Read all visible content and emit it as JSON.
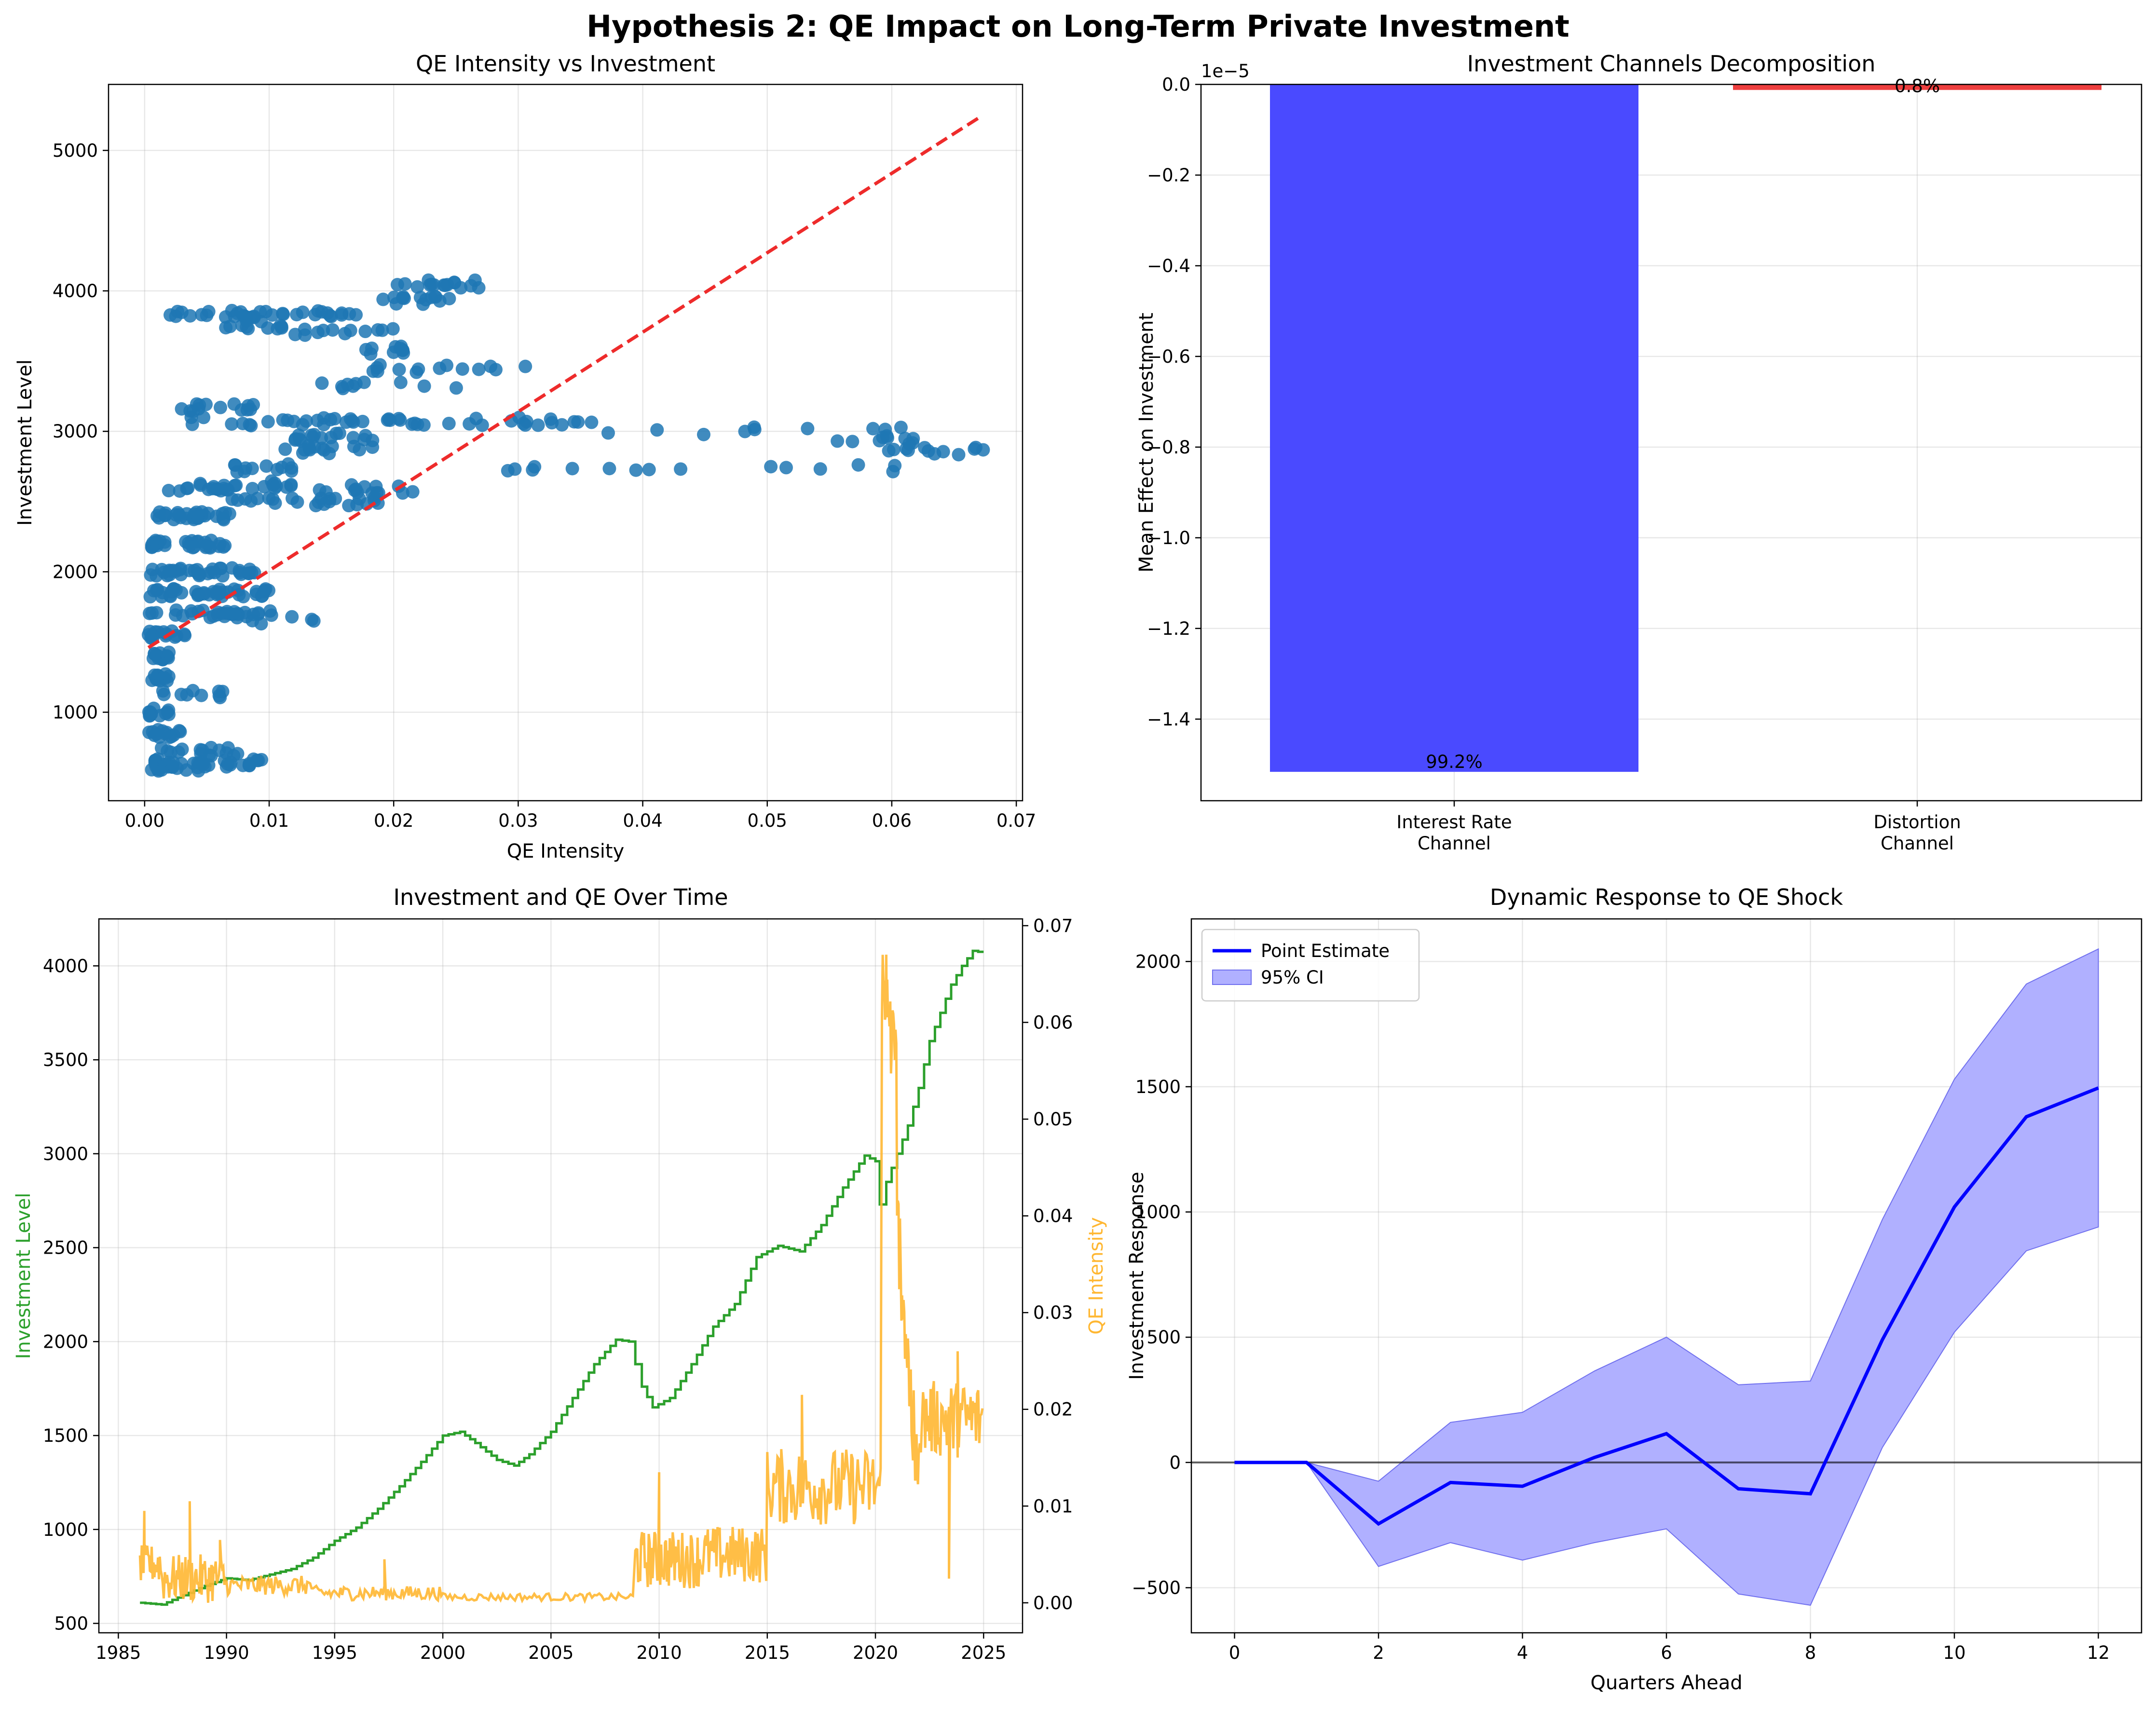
{
  "figure_title": "Hypothesis 2: QE Impact on Long-Term Private Investment",
  "chart_data": [
    {
      "id": "scatter",
      "type": "scatter",
      "title": "QE Intensity vs Investment",
      "xlabel": "QE Intensity",
      "ylabel": "Investment Level",
      "xlim": [
        -0.0029,
        0.0705
      ],
      "ylim": [
        370,
        5470
      ],
      "xticks": [
        0.0,
        0.01,
        0.02,
        0.03,
        0.04,
        0.05,
        0.06,
        0.07
      ],
      "xtick_labels": [
        "0.00",
        "0.01",
        "0.02",
        "0.03",
        "0.04",
        "0.05",
        "0.06",
        "0.07"
      ],
      "yticks": [
        1000,
        2000,
        3000,
        4000,
        5000
      ],
      "grid": true,
      "point_color": "#1f77b4",
      "trend_color": "#ee2b2b",
      "trend_line": {
        "x": [
          0.0003,
          0.0673
        ],
        "y": [
          1460,
          5250
        ]
      },
      "point_groups": [
        {
          "y": 3830,
          "x_min": 0.001,
          "x_max": 0.0105,
          "n": 22
        },
        {
          "y": 3760,
          "x_min": 0.004,
          "x_max": 0.014,
          "n": 12
        },
        {
          "y": 3830,
          "x_min": 0.011,
          "x_max": 0.017,
          "n": 14
        },
        {
          "y": 3700,
          "x_min": 0.012,
          "x_max": 0.022,
          "n": 12
        },
        {
          "y": 3580,
          "x_min": 0.016,
          "x_max": 0.023,
          "n": 10
        },
        {
          "y": 3450,
          "x_min": 0.017,
          "x_max": 0.031,
          "n": 14
        },
        {
          "y": 3320,
          "x_min": 0.013,
          "x_max": 0.026,
          "n": 10
        },
        {
          "y": 4050,
          "x_min": 0.02,
          "x_max": 0.027,
          "n": 16
        },
        {
          "y": 3930,
          "x_min": 0.019,
          "x_max": 0.025,
          "n": 14
        },
        {
          "y": 3170,
          "x_min": 0.0025,
          "x_max": 0.01,
          "n": 14
        },
        {
          "y": 3070,
          "x_min": 0.003,
          "x_max": 0.02,
          "n": 26
        },
        {
          "y": 3070,
          "x_min": 0.02,
          "x_max": 0.036,
          "n": 22
        },
        {
          "y": 2960,
          "x_min": 0.012,
          "x_max": 0.019,
          "n": 16
        },
        {
          "y": 2870,
          "x_min": 0.01,
          "x_max": 0.019,
          "n": 14
        },
        {
          "y": 2740,
          "x_min": 0.0065,
          "x_max": 0.012,
          "n": 12
        },
        {
          "y": 2620,
          "x_min": 0.006,
          "x_max": 0.012,
          "n": 12
        },
        {
          "y": 2590,
          "x_min": 0.014,
          "x_max": 0.022,
          "n": 14
        },
        {
          "y": 2500,
          "x_min": 0.006,
          "x_max": 0.02,
          "n": 24
        },
        {
          "y": 2740,
          "x_min": 0.026,
          "x_max": 0.045,
          "n": 9
        },
        {
          "y": 3000,
          "x_min": 0.037,
          "x_max": 0.061,
          "n": 10
        },
        {
          "y": 2940,
          "x_min": 0.054,
          "x_max": 0.062,
          "n": 10
        },
        {
          "y": 2860,
          "x_min": 0.059,
          "x_max": 0.0675,
          "n": 12
        },
        {
          "y": 2740,
          "x_min": 0.049,
          "x_max": 0.061,
          "n": 6
        },
        {
          "y": 2600,
          "x_min": 0.0015,
          "x_max": 0.007,
          "n": 16
        },
        {
          "y": 2400,
          "x_min": 0.001,
          "x_max": 0.007,
          "n": 30
        },
        {
          "y": 2200,
          "x_min": 0.0005,
          "x_max": 0.007,
          "n": 30
        },
        {
          "y": 2000,
          "x_min": 0.0003,
          "x_max": 0.009,
          "n": 36
        },
        {
          "y": 1850,
          "x_min": 0.0003,
          "x_max": 0.01,
          "n": 40
        },
        {
          "y": 1700,
          "x_min": 0.0003,
          "x_max": 0.011,
          "n": 30
        },
        {
          "y": 1660,
          "x_min": 0.008,
          "x_max": 0.014,
          "n": 6
        },
        {
          "y": 1550,
          "x_min": 0.0003,
          "x_max": 0.0035,
          "n": 16
        },
        {
          "y": 1400,
          "x_min": 0.0003,
          "x_max": 0.002,
          "n": 14
        },
        {
          "y": 1250,
          "x_min": 0.0003,
          "x_max": 0.002,
          "n": 12
        },
        {
          "y": 1130,
          "x_min": 0.0005,
          "x_max": 0.0065,
          "n": 10
        },
        {
          "y": 1000,
          "x_min": 0.0003,
          "x_max": 0.002,
          "n": 12
        },
        {
          "y": 850,
          "x_min": 0.0003,
          "x_max": 0.003,
          "n": 14
        },
        {
          "y": 720,
          "x_min": 0.0008,
          "x_max": 0.008,
          "n": 16
        },
        {
          "y": 640,
          "x_min": 0.0005,
          "x_max": 0.01,
          "n": 28
        },
        {
          "y": 610,
          "x_min": 0.0005,
          "x_max": 0.005,
          "n": 16
        }
      ]
    },
    {
      "id": "bars",
      "type": "bar",
      "title": "Investment Channels Decomposition",
      "ylabel": "Mean Effect on Investment",
      "categories": [
        "Interest Rate\nChannel",
        "Distortion\nChannel"
      ],
      "values": [
        -1.5163e-05,
        -1.22e-07
      ],
      "bar_labels": [
        "99.2%",
        "0.8%"
      ],
      "colors": [
        "#4a4aff",
        "#ee3e3e"
      ],
      "offset_text": "1e−5",
      "ylim": [
        -1.58e-05,
        0
      ],
      "yticks": [
        0.0,
        -2e-06,
        -4e-06,
        -6e-06,
        -8e-06,
        -1e-05,
        -1.2e-05,
        -1.4e-05
      ],
      "ytick_labels": [
        "0.0",
        "−0.2",
        "−0.4",
        "−0.6",
        "−0.8",
        "−1.0",
        "−1.2",
        "−1.4"
      ],
      "grid": true
    },
    {
      "id": "timeseries",
      "type": "line",
      "title": "Investment and QE Over Time",
      "ylabel": "Investment Level",
      "ylabel_right": "QE Intensity",
      "xlim": [
        1984.1,
        2026.8
      ],
      "ylim": [
        450,
        4250
      ],
      "ylim_right": [
        -0.0031,
        0.0707
      ],
      "xticks": [
        1985,
        1990,
        1995,
        2000,
        2005,
        2010,
        2015,
        2020,
        2025
      ],
      "yticks": [
        500,
        1000,
        1500,
        2000,
        2500,
        3000,
        3500,
        4000
      ],
      "yticks_right": [
        0.0,
        0.01,
        0.02,
        0.03,
        0.04,
        0.05,
        0.06,
        0.07
      ],
      "ytick_labels_right": [
        "0.00",
        "0.01",
        "0.02",
        "0.03",
        "0.04",
        "0.05",
        "0.06",
        "0.07"
      ],
      "investment_color": "#2ca02c",
      "qe_color": "#ffb732",
      "grid": true,
      "investment_points": [
        [
          1986.0,
          610
        ],
        [
          1987.0,
          600
        ],
        [
          1988.0,
          650
        ],
        [
          1989.0,
          700
        ],
        [
          1990.0,
          740
        ],
        [
          1991.0,
          730
        ],
        [
          1992.0,
          760
        ],
        [
          1993.0,
          790
        ],
        [
          1994.0,
          850
        ],
        [
          1995.0,
          940
        ],
        [
          1996.0,
          1010
        ],
        [
          1997.0,
          1110
        ],
        [
          1998.0,
          1230
        ],
        [
          1999.0,
          1360
        ],
        [
          2000.0,
          1500
        ],
        [
          2000.8,
          1520
        ],
        [
          2001.5,
          1460
        ],
        [
          2002.5,
          1370
        ],
        [
          2003.3,
          1340
        ],
        [
          2004.0,
          1400
        ],
        [
          2005.0,
          1520
        ],
        [
          2006.0,
          1700
        ],
        [
          2007.0,
          1880
        ],
        [
          2008.0,
          2010
        ],
        [
          2008.6,
          2000
        ],
        [
          2009.2,
          1760
        ],
        [
          2009.7,
          1650
        ],
        [
          2010.5,
          1700
        ],
        [
          2011.5,
          1880
        ],
        [
          2012.5,
          2080
        ],
        [
          2013.5,
          2200
        ],
        [
          2014.5,
          2450
        ],
        [
          2015.5,
          2510
        ],
        [
          2016.5,
          2480
        ],
        [
          2017.5,
          2620
        ],
        [
          2018.5,
          2820
        ],
        [
          2019.5,
          2990
        ],
        [
          2020.0,
          2960
        ],
        [
          2020.2,
          2730
        ],
        [
          2020.5,
          2850
        ],
        [
          2021.0,
          3000
        ],
        [
          2021.5,
          3150
        ],
        [
          2022.0,
          3350
        ],
        [
          2022.5,
          3600
        ],
        [
          2023.0,
          3750
        ],
        [
          2023.5,
          3900
        ],
        [
          2024.0,
          4000
        ],
        [
          2024.5,
          4080
        ],
        [
          2025.0,
          4070
        ]
      ],
      "qe_segments": [
        {
          "x0": 1986.0,
          "x1": 1987.0,
          "base": 0.004,
          "amp": 0.004,
          "n": 24
        },
        {
          "x0": 1987.0,
          "x1": 1990.0,
          "base": 0.0025,
          "amp": 0.005,
          "n": 60
        },
        {
          "x0": 1990.0,
          "x1": 1994.0,
          "base": 0.0018,
          "amp": 0.002,
          "n": 60
        },
        {
          "x0": 1994.0,
          "x1": 2000.0,
          "base": 0.001,
          "amp": 0.0015,
          "n": 80
        },
        {
          "x0": 2000.0,
          "x1": 2008.9,
          "base": 0.0006,
          "amp": 0.0008,
          "n": 80
        },
        {
          "x0": 2008.9,
          "x1": 2012.0,
          "base": 0.0045,
          "amp": 0.006,
          "n": 70
        },
        {
          "x0": 2012.0,
          "x1": 2015.0,
          "base": 0.005,
          "amp": 0.006,
          "n": 60
        },
        {
          "x0": 2015.0,
          "x1": 2020.3,
          "base": 0.012,
          "amp": 0.008,
          "n": 90
        },
        {
          "x0": 2020.3,
          "x1": 2021.0,
          "base": 0.055,
          "amp": 0.01,
          "n": 20
        },
        {
          "x0": 2021.0,
          "x1": 2022.0,
          "base": 0.02,
          "amp": 0.012,
          "n": 30
        },
        {
          "x0": 2022.0,
          "x1": 2025.0,
          "base": 0.019,
          "amp": 0.008,
          "n": 60
        }
      ],
      "qe_peaks": [
        [
          1986.2,
          0.0095
        ],
        [
          1988.3,
          0.0105
        ],
        [
          1989.7,
          0.0065
        ],
        [
          1997.3,
          0.0045
        ],
        [
          2010.0,
          0.0135
        ],
        [
          2016.6,
          0.0215
        ],
        [
          2020.5,
          0.067
        ],
        [
          2023.4,
          0.0025
        ],
        [
          2023.8,
          0.026
        ]
      ]
    },
    {
      "id": "irf",
      "type": "area",
      "title": "Dynamic Response to QE Shock",
      "xlabel": "Quarters Ahead",
      "ylabel": "Investment Response",
      "xlim": [
        -0.6,
        12.6
      ],
      "ylim": [
        -680,
        2170
      ],
      "xticks": [
        0,
        2,
        4,
        6,
        8,
        10,
        12
      ],
      "yticks": [
        -500,
        0,
        500,
        1000,
        1500,
        2000
      ],
      "ytick_labels": [
        "−500",
        "0",
        "500",
        "1000",
        "1500",
        "2000"
      ],
      "grid": true,
      "x": [
        0,
        1,
        2,
        3,
        4,
        5,
        6,
        7,
        8,
        9,
        10,
        11,
        12
      ],
      "series": [
        {
          "name": "Point Estimate",
          "values": [
            0,
            0,
            -245,
            -80,
            -95,
            20,
            115,
            -105,
            -125,
            490,
            1020,
            1380,
            1495
          ],
          "color": "#0000ff"
        },
        {
          "name": "95% CI",
          "upper": [
            0,
            0,
            -75,
            160,
            200,
            365,
            500,
            310,
            325,
            970,
            1530,
            1910,
            2050
          ],
          "lower": [
            0,
            0,
            -415,
            -320,
            -390,
            -320,
            -265,
            -525,
            -570,
            60,
            520,
            845,
            940
          ],
          "color": "#b0b0ff"
        }
      ],
      "legend": "upper left"
    }
  ]
}
